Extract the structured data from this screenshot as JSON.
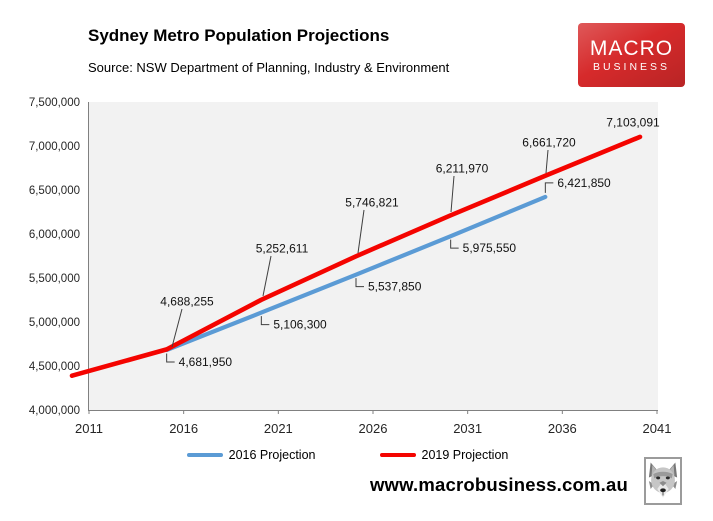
{
  "header": {
    "title": "Sydney Metro Population Projections",
    "source": "Source: NSW Department of Planning, Industry & Environment"
  },
  "logo": {
    "line1": "MACRO",
    "line2": "BUSINESS",
    "bg_color": "#d62a2b"
  },
  "chart_data": {
    "type": "line",
    "title": "Sydney Metro Population Projections",
    "xlabel": "",
    "ylabel": "",
    "xlim": [
      2011,
      2041
    ],
    "ylim": [
      4000000,
      7500000
    ],
    "ytick_step": 500000,
    "grid": false,
    "plot_bg": "#f2f2f2",
    "axis_color": "#808080",
    "legend_position": "bottom",
    "xticks": [
      "2011",
      "2016",
      "2021",
      "2026",
      "2031",
      "2036",
      "2041"
    ],
    "ytick_labels": [
      "4,000,000",
      "4,500,000",
      "5,000,000",
      "5,500,000",
      "6,000,000",
      "6,500,000",
      "7,000,000",
      "7,500,000"
    ],
    "series": [
      {
        "name": "2016 Projection",
        "color": "#5b9bd5",
        "x": [
          2016,
          2021,
          2026,
          2031,
          2036
        ],
        "values": [
          4681950,
          5106300,
          5537850,
          5975550,
          6421850
        ],
        "point_labels": [
          "4,681,950",
          "5,106,300",
          "5,537,850",
          "5,975,550",
          "6,421,850"
        ]
      },
      {
        "name": "2019 Projection",
        "color": "#f40400",
        "x": [
          2011,
          2016,
          2021,
          2026,
          2031,
          2036,
          2041
        ],
        "values": [
          4390000,
          4688255,
          5252611,
          5746821,
          6211970,
          6661720,
          7103091
        ],
        "point_labels": [
          "",
          "4,688,255",
          "5,252,611",
          "5,746,821",
          "6,211,970",
          "6,661,720",
          "7,103,091"
        ]
      }
    ]
  },
  "footer": {
    "website": "www.macrobusiness.com.au"
  }
}
